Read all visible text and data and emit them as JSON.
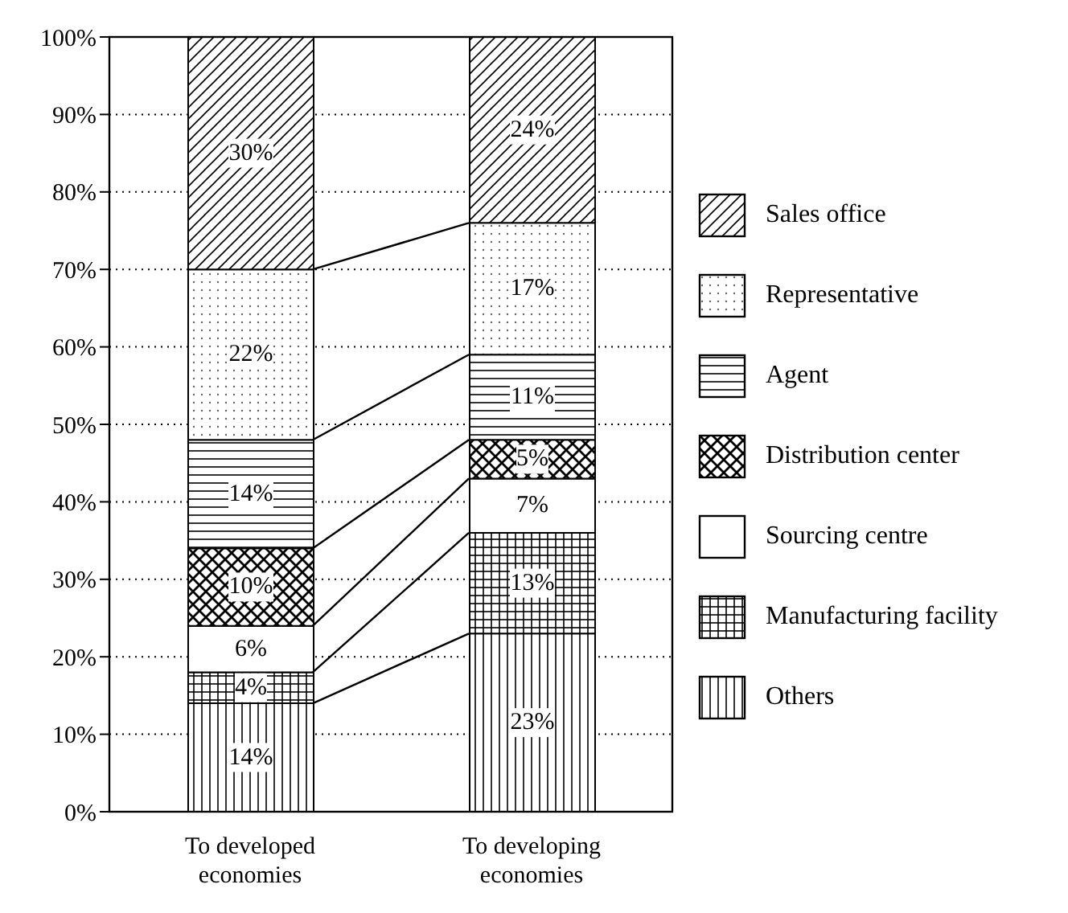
{
  "chart_data": {
    "type": "bar",
    "stacked": true,
    "categories": [
      "To developed economies",
      "To developing economies"
    ],
    "series": [
      {
        "name": "Others",
        "values": [
          14,
          23
        ],
        "value_labels": [
          "14%",
          "23%"
        ]
      },
      {
        "name": "Manufacturing facility",
        "values": [
          4,
          13
        ],
        "value_labels": [
          "4%",
          "13%"
        ]
      },
      {
        "name": "Sourcing centre",
        "values": [
          6,
          7
        ],
        "value_labels": [
          "6%",
          "7%"
        ]
      },
      {
        "name": "Distribution center",
        "values": [
          10,
          5
        ],
        "value_labels": [
          "10%",
          "5%"
        ]
      },
      {
        "name": "Agent",
        "values": [
          14,
          11
        ],
        "value_labels": [
          "14%",
          "11%"
        ]
      },
      {
        "name": "Representative",
        "values": [
          22,
          17
        ],
        "value_labels": [
          "22%",
          "17%"
        ]
      },
      {
        "name": "Sales office",
        "values": [
          30,
          24
        ],
        "value_labels": [
          "30%",
          "24%"
        ]
      }
    ],
    "ylim": [
      0,
      100
    ],
    "yticks": [
      {
        "value": 0,
        "label": "0%"
      },
      {
        "value": 10,
        "label": "10%"
      },
      {
        "value": 20,
        "label": "20%"
      },
      {
        "value": 30,
        "label": "30%"
      },
      {
        "value": 40,
        "label": "40%"
      },
      {
        "value": 50,
        "label": "50%"
      },
      {
        "value": 60,
        "label": "60%"
      },
      {
        "value": 70,
        "label": "70%"
      },
      {
        "value": 80,
        "label": "80%"
      },
      {
        "value": 90,
        "label": "90%"
      },
      {
        "value": 100,
        "label": "100%"
      }
    ],
    "grid": "y",
    "legend": "right"
  }
}
